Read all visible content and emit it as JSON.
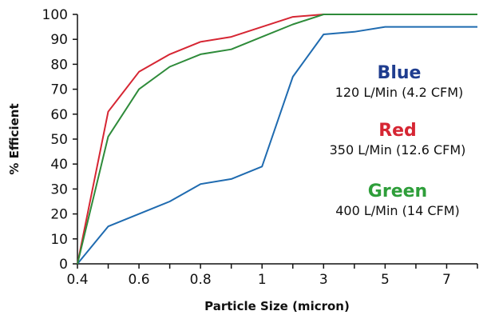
{
  "chart_data": {
    "type": "line",
    "x": [
      "0.4",
      "0.5",
      "0.6",
      "0.7",
      "0.8",
      "0.9",
      "1",
      "2",
      "3",
      "4",
      "5",
      "6",
      "7",
      "8"
    ],
    "x_tick_labels": [
      "0.4",
      "0.6",
      "0.8",
      "1",
      "3",
      "5",
      "7"
    ],
    "xlabel": "Particle Size (micron)",
    "ylabel": "% Efficient",
    "ylim": [
      0,
      100
    ],
    "yticks": [
      0,
      10,
      20,
      30,
      40,
      50,
      60,
      70,
      80,
      90,
      100
    ],
    "grid": false,
    "legend_position": "right",
    "series": [
      {
        "name": "Blue",
        "description": "120 L/Min (4.2 CFM)",
        "color": "#1f6bb0",
        "values": [
          0,
          15,
          20,
          25,
          32,
          34,
          39,
          75,
          92,
          93,
          95,
          95,
          95,
          95
        ]
      },
      {
        "name": "Red",
        "description": "350 L/Min (12.6 CFM)",
        "color": "#d62633",
        "values": [
          0,
          61,
          77,
          84,
          89,
          91,
          95,
          99,
          100,
          100,
          100,
          100,
          100,
          100
        ]
      },
      {
        "name": "Green",
        "description": "400 L/Min (14 CFM)",
        "color": "#2e8b3a",
        "values": [
          0,
          51,
          70,
          79,
          84,
          86,
          91,
          96,
          100,
          100,
          100,
          100,
          100,
          100
        ]
      }
    ]
  },
  "legend": {
    "blue": {
      "name": "Blue",
      "description": "120 L/Min (4.2 CFM)",
      "name_color": "#1f3d8f"
    },
    "red": {
      "name": "Red",
      "description": "350 L/Min (12.6 CFM)",
      "name_color": "#d62633"
    },
    "green": {
      "name": "Green",
      "description": "400 L/Min (14 CFM)",
      "name_color": "#2e9e3a"
    }
  }
}
